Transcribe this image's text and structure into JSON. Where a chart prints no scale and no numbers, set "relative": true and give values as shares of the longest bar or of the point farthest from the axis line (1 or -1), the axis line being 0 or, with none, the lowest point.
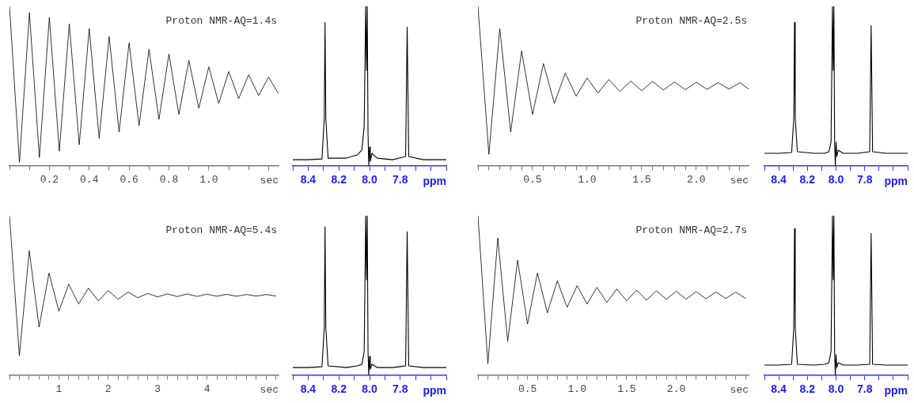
{
  "chart_data": [
    {
      "type": "line",
      "title": "Proton NMR-AQ=1.4s",
      "xlabel": "sec",
      "relative": true,
      "marker": "none",
      "xlim": [
        0,
        1.35
      ],
      "xticks": [
        {
          "value": 0,
          "label": null
        },
        {
          "value": 0.1,
          "label": null
        },
        0.2,
        {
          "value": 0.3,
          "label": null
        },
        0.4,
        {
          "value": 0.5,
          "label": null
        },
        0.6,
        {
          "value": 0.7,
          "label": null
        },
        0.8,
        {
          "value": 0.9,
          "label": null
        },
        {
          "value": 1,
          "label": "1.0"
        },
        {
          "value": 1.1,
          "label": null
        },
        {
          "value": 1.2,
          "label": null
        },
        {
          "value": 1.3,
          "label": null
        }
      ],
      "x": [
        0,
        0.05,
        0.1,
        0.15,
        0.2,
        0.25,
        0.3,
        0.35,
        0.4,
        0.45,
        0.5,
        0.55,
        0.6,
        0.65,
        0.7,
        0.75,
        0.8,
        0.85,
        0.9,
        0.95,
        1.0,
        1.05,
        1.1,
        1.15,
        1.2,
        1.25,
        1.3,
        1.35
      ],
      "series": [
        {
          "color": "#000000",
          "values": [
            1.0,
            0.02,
            0.96,
            0.05,
            0.93,
            0.09,
            0.89,
            0.13,
            0.86,
            0.17,
            0.81,
            0.21,
            0.77,
            0.25,
            0.73,
            0.29,
            0.7,
            0.32,
            0.66,
            0.36,
            0.62,
            0.39,
            0.59,
            0.42,
            0.57,
            0.44,
            0.555,
            0.45
          ]
        }
      ]
    },
    {
      "type": "line",
      "xlabel": "ppm",
      "relative": true,
      "marker": "none",
      "xlim": [
        8.5,
        7.5
      ],
      "xticks": [
        {
          "value": 8.5,
          "label": null
        },
        8.4,
        {
          "value": 8.3,
          "label": null
        },
        8.2,
        {
          "value": 8.1,
          "label": null
        },
        {
          "value": 8,
          "label": "8.0"
        },
        {
          "value": 7.9,
          "label": null
        },
        7.8,
        {
          "value": 7.7,
          "label": null
        },
        {
          "value": 7.6,
          "label": null
        },
        {
          "value": 7.5,
          "label": null
        }
      ],
      "x": [
        8.5,
        8.4,
        8.31,
        8.295,
        8.29,
        8.285,
        8.27,
        8.15,
        8.08,
        8.05,
        8.035,
        8.025,
        8.02,
        8.015,
        8.01,
        8.005,
        8.0,
        7.995,
        7.985,
        7.95,
        7.85,
        7.765,
        7.755,
        7.745,
        7.65,
        7.5
      ],
      "series": [
        {
          "color": "#000000",
          "values": [
            0.04,
            0.04,
            0.045,
            0.3,
            0.9,
            0.3,
            0.05,
            0.05,
            0.07,
            0.1,
            0.25,
            1.0,
            0.6,
            1.0,
            0.2,
            0,
            0.12,
            0.03,
            0.08,
            0.05,
            0.04,
            0.06,
            0.87,
            0.06,
            0.04,
            0.04
          ]
        }
      ]
    },
    {
      "type": "line",
      "title": "Proton NMR-AQ=2.5s",
      "xlabel": "sec",
      "relative": true,
      "marker": "none",
      "xlim": [
        0,
        2.48
      ],
      "xticks": [
        {
          "value": 0,
          "label": null
        },
        {
          "value": 0.1,
          "label": null
        },
        {
          "value": 0.2,
          "label": null
        },
        {
          "value": 0.3,
          "label": null
        },
        {
          "value": 0.4,
          "label": null
        },
        0.5,
        {
          "value": 0.6,
          "label": null
        },
        {
          "value": 0.7,
          "label": null
        },
        {
          "value": 0.8,
          "label": null
        },
        {
          "value": 0.9,
          "label": null
        },
        {
          "value": 1,
          "label": "1.0"
        },
        {
          "value": 1.1,
          "label": null
        },
        {
          "value": 1.2,
          "label": null
        },
        {
          "value": 1.3,
          "label": null
        },
        {
          "value": 1.4,
          "label": null
        },
        1.5,
        {
          "value": 1.6,
          "label": null
        },
        {
          "value": 1.7,
          "label": null
        },
        {
          "value": 1.8,
          "label": null
        },
        {
          "value": 1.9,
          "label": null
        },
        {
          "value": 2,
          "label": "2.0"
        },
        {
          "value": 2.1,
          "label": null
        },
        {
          "value": 2.2,
          "label": null
        },
        {
          "value": 2.3,
          "label": null
        },
        {
          "value": 2.4,
          "label": null
        }
      ],
      "x": [
        0,
        0.1,
        0.2,
        0.3,
        0.4,
        0.5,
        0.6,
        0.7,
        0.8,
        0.9,
        1.0,
        1.1,
        1.2,
        1.3,
        1.4,
        1.5,
        1.6,
        1.7,
        1.8,
        1.9,
        2.0,
        2.1,
        2.2,
        2.3,
        2.4,
        2.48
      ],
      "series": [
        {
          "color": "#000000",
          "values": [
            1.0,
            0.07,
            0.86,
            0.21,
            0.72,
            0.32,
            0.64,
            0.39,
            0.58,
            0.435,
            0.55,
            0.455,
            0.54,
            0.465,
            0.53,
            0.47,
            0.528,
            0.474,
            0.525,
            0.476,
            0.523,
            0.478,
            0.521,
            0.48,
            0.52,
            0.48
          ]
        }
      ]
    },
    {
      "type": "line",
      "xlabel": "ppm",
      "relative": true,
      "marker": "none",
      "xlim": [
        8.5,
        7.5
      ],
      "xticks": [
        {
          "value": 8.5,
          "label": null
        },
        8.4,
        {
          "value": 8.3,
          "label": null
        },
        8.2,
        {
          "value": 8.1,
          "label": null
        },
        {
          "value": 8,
          "label": "8.0"
        },
        {
          "value": 7.9,
          "label": null
        },
        7.8,
        {
          "value": 7.7,
          "label": null
        },
        {
          "value": 7.6,
          "label": null
        },
        {
          "value": 7.5,
          "label": null
        }
      ],
      "x": [
        8.5,
        8.4,
        8.31,
        8.295,
        8.29,
        8.285,
        8.27,
        8.15,
        8.08,
        8.05,
        8.035,
        8.025,
        8.02,
        8.015,
        8.01,
        8.005,
        8.0,
        7.995,
        7.985,
        7.95,
        7.85,
        7.765,
        7.755,
        7.745,
        7.65,
        7.5
      ],
      "series": [
        {
          "color": "#000000",
          "values": [
            0.08,
            0.08,
            0.085,
            0.3,
            0.9,
            0.3,
            0.09,
            0.08,
            0.08,
            0.09,
            0.15,
            1.0,
            0.6,
            1.0,
            0.15,
            0,
            0.15,
            0.06,
            0.1,
            0.08,
            0.08,
            0.09,
            0.88,
            0.09,
            0.08,
            0.08
          ]
        }
      ]
    },
    {
      "type": "line",
      "title": "Proton NMR-AQ=5.4s",
      "xlabel": "sec",
      "relative": true,
      "marker": "none",
      "xlim": [
        0,
        5.45
      ],
      "xticks": [
        {
          "value": 0,
          "label": null
        },
        {
          "value": 0.2,
          "label": null
        },
        {
          "value": 0.4,
          "label": null
        },
        {
          "value": 0.6,
          "label": null
        },
        {
          "value": 0.8,
          "label": null
        },
        1,
        {
          "value": 1.2,
          "label": null
        },
        {
          "value": 1.4,
          "label": null
        },
        {
          "value": 1.6,
          "label": null
        },
        {
          "value": 1.8,
          "label": null
        },
        2,
        {
          "value": 2.2,
          "label": null
        },
        {
          "value": 2.4,
          "label": null
        },
        {
          "value": 2.6,
          "label": null
        },
        {
          "value": 2.8,
          "label": null
        },
        3,
        {
          "value": 3.2,
          "label": null
        },
        {
          "value": 3.4,
          "label": null
        },
        {
          "value": 3.6,
          "label": null
        },
        {
          "value": 3.8,
          "label": null
        },
        4,
        {
          "value": 4.2,
          "label": null
        },
        {
          "value": 4.4,
          "label": null
        },
        {
          "value": 4.6,
          "label": null
        },
        {
          "value": 4.8,
          "label": null
        },
        {
          "value": 5,
          "label": null
        },
        {
          "value": 5.2,
          "label": null
        },
        {
          "value": 5.4,
          "label": null
        }
      ],
      "x": [
        0,
        0.2,
        0.4,
        0.6,
        0.8,
        1.0,
        1.2,
        1.4,
        1.6,
        1.8,
        2.0,
        2.2,
        2.4,
        2.6,
        2.8,
        3.0,
        3.2,
        3.4,
        3.6,
        3.8,
        4.0,
        4.2,
        4.4,
        4.6,
        4.8,
        5.0,
        5.2,
        5.4
      ],
      "series": [
        {
          "color": "#000000",
          "values": [
            1.0,
            0.12,
            0.78,
            0.3,
            0.64,
            0.4,
            0.57,
            0.445,
            0.545,
            0.465,
            0.53,
            0.475,
            0.52,
            0.485,
            0.512,
            0.49,
            0.509,
            0.492,
            0.508,
            0.493,
            0.507,
            0.494,
            0.506,
            0.494,
            0.505,
            0.495,
            0.505,
            0.495
          ]
        }
      ]
    },
    {
      "type": "line",
      "xlabel": "ppm",
      "relative": true,
      "marker": "none",
      "xlim": [
        8.5,
        7.5
      ],
      "xticks": [
        {
          "value": 8.5,
          "label": null
        },
        8.4,
        {
          "value": 8.3,
          "label": null
        },
        8.2,
        {
          "value": 8.1,
          "label": null
        },
        {
          "value": 8,
          "label": "8.0"
        },
        {
          "value": 7.9,
          "label": null
        },
        7.8,
        {
          "value": 7.7,
          "label": null
        },
        {
          "value": 7.6,
          "label": null
        },
        {
          "value": 7.5,
          "label": null
        }
      ],
      "x": [
        8.5,
        8.4,
        8.31,
        8.295,
        8.29,
        8.285,
        8.27,
        8.15,
        8.08,
        8.05,
        8.035,
        8.025,
        8.02,
        8.015,
        8.01,
        8.005,
        8.0,
        7.995,
        7.985,
        7.95,
        7.85,
        7.765,
        7.755,
        7.745,
        7.65,
        7.5
      ],
      "series": [
        {
          "color": "#000000",
          "values": [
            0.05,
            0.05,
            0.055,
            0.3,
            0.93,
            0.3,
            0.06,
            0.05,
            0.06,
            0.07,
            0.15,
            1.0,
            0.6,
            1.0,
            0.15,
            0,
            0.12,
            0.04,
            0.07,
            0.05,
            0.05,
            0.06,
            0.9,
            0.06,
            0.05,
            0.05
          ]
        }
      ]
    },
    {
      "type": "line",
      "title": "Proton NMR-AQ=2.7s",
      "xlabel": "sec",
      "relative": true,
      "marker": "none",
      "xlim": [
        0,
        2.73
      ],
      "xticks": [
        {
          "value": 0,
          "label": null
        },
        {
          "value": 0.1,
          "label": null
        },
        {
          "value": 0.2,
          "label": null
        },
        {
          "value": 0.3,
          "label": null
        },
        {
          "value": 0.4,
          "label": null
        },
        0.5,
        {
          "value": 0.6,
          "label": null
        },
        {
          "value": 0.7,
          "label": null
        },
        {
          "value": 0.8,
          "label": null
        },
        {
          "value": 0.9,
          "label": null
        },
        {
          "value": 1,
          "label": "1.0"
        },
        {
          "value": 1.1,
          "label": null
        },
        {
          "value": 1.2,
          "label": null
        },
        {
          "value": 1.3,
          "label": null
        },
        {
          "value": 1.4,
          "label": null
        },
        1.5,
        {
          "value": 1.6,
          "label": null
        },
        {
          "value": 1.7,
          "label": null
        },
        {
          "value": 1.8,
          "label": null
        },
        {
          "value": 1.9,
          "label": null
        },
        {
          "value": 2,
          "label": "2.0"
        },
        {
          "value": 2.1,
          "label": null
        },
        {
          "value": 2.2,
          "label": null
        },
        {
          "value": 2.3,
          "label": null
        },
        {
          "value": 2.4,
          "label": null
        },
        {
          "value": 2.5,
          "label": null
        },
        {
          "value": 2.6,
          "label": null
        },
        {
          "value": 2.7,
          "label": null
        }
      ],
      "x": [
        0,
        0.1,
        0.2,
        0.3,
        0.4,
        0.5,
        0.6,
        0.7,
        0.8,
        0.9,
        1.0,
        1.1,
        1.2,
        1.3,
        1.4,
        1.5,
        1.6,
        1.7,
        1.8,
        1.9,
        2.0,
        2.1,
        2.2,
        2.3,
        2.4,
        2.5,
        2.6,
        2.7
      ],
      "series": [
        {
          "color": "#000000",
          "values": [
            1.0,
            0.07,
            0.86,
            0.21,
            0.72,
            0.32,
            0.64,
            0.39,
            0.59,
            0.425,
            0.56,
            0.445,
            0.55,
            0.455,
            0.54,
            0.465,
            0.533,
            0.47,
            0.528,
            0.474,
            0.525,
            0.476,
            0.523,
            0.478,
            0.521,
            0.48,
            0.52,
            0.48
          ]
        }
      ]
    },
    {
      "type": "line",
      "xlabel": "ppm",
      "relative": true,
      "marker": "none",
      "xlim": [
        8.5,
        7.5
      ],
      "xticks": [
        {
          "value": 8.5,
          "label": null
        },
        8.4,
        {
          "value": 8.3,
          "label": null
        },
        8.2,
        {
          "value": 8.1,
          "label": null
        },
        {
          "value": 8,
          "label": "8.0"
        },
        {
          "value": 7.9,
          "label": null
        },
        7.8,
        {
          "value": 7.7,
          "label": null
        },
        {
          "value": 7.6,
          "label": null
        },
        {
          "value": 7.5,
          "label": null
        }
      ],
      "x": [
        8.5,
        8.4,
        8.31,
        8.295,
        8.29,
        8.285,
        8.27,
        8.15,
        8.08,
        8.05,
        8.035,
        8.025,
        8.02,
        8.015,
        8.01,
        8.005,
        8.0,
        7.995,
        7.985,
        7.95,
        7.85,
        7.765,
        7.755,
        7.745,
        7.65,
        7.5
      ],
      "series": [
        {
          "color": "#000000",
          "values": [
            0.065,
            0.065,
            0.07,
            0.3,
            0.92,
            0.3,
            0.07,
            0.065,
            0.07,
            0.08,
            0.15,
            1.0,
            0.6,
            1.0,
            0.15,
            0,
            0.13,
            0.05,
            0.08,
            0.065,
            0.065,
            0.07,
            0.89,
            0.07,
            0.065,
            0.065
          ]
        }
      ]
    }
  ]
}
